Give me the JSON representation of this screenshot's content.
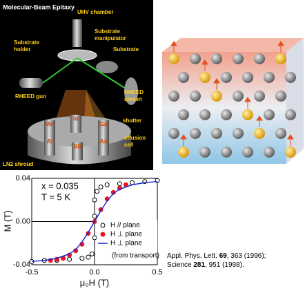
{
  "diagram": {
    "title": "Molecular-Beam Epitaxy",
    "labels": [
      {
        "lines": [
          "UHV chamber"
        ]
      },
      {
        "lines": [
          "Substrate",
          "manipulator"
        ]
      },
      {
        "lines": [
          "Substrate",
          "holder"
        ]
      },
      {
        "lines": [
          "Substrate"
        ]
      },
      {
        "lines": [
          "RHEED gun"
        ]
      },
      {
        "lines": [
          "RHEED",
          "screen"
        ]
      },
      {
        "lines": [
          "shutter"
        ]
      },
      {
        "lines": [
          "effusion",
          "cell"
        ]
      },
      {
        "lines": [
          "LN2 shroud"
        ]
      }
    ],
    "cells": [
      "Mn",
      "In",
      "Ga",
      "Al",
      "Sb",
      "As"
    ]
  },
  "reference": [
    {
      "journal": "Appl. Phys. Lett.",
      "volume": "69",
      "rest": ", 363 (1996);"
    },
    {
      "journal": "Science",
      "volume": "281",
      "rest": ", 951 (1998)."
    }
  ],
  "chart_data": {
    "type": "scatter",
    "x_label": "μ₀H (T)",
    "y_label": "M (T)",
    "annotations": [
      "x = 0.035",
      "T = 5 K"
    ],
    "legend_note": "(from transport)",
    "xlim": [
      -0.5,
      0.5
    ],
    "xticks": [
      -0.5,
      {
        "value": 0,
        "label": "0.0"
      },
      0.5
    ],
    "ylim": [
      -0.04,
      0.04
    ],
    "yticks": [
      -0.04,
      {
        "value": 0,
        "label": "0.00"
      },
      0.04
    ],
    "series": [
      {
        "name": "H // plane",
        "color": "#000000",
        "marker": "open-circle",
        "x": [
          -0.5,
          -0.4,
          -0.3,
          -0.2,
          -0.1,
          -0.05,
          -0.02,
          0,
          0,
          0,
          0.02,
          0.05,
          0.1,
          0.2,
          0.3,
          0.4,
          0.5
        ],
        "values": [
          -0.037,
          -0.036,
          -0.036,
          -0.035,
          -0.034,
          -0.033,
          -0.03,
          -0.015,
          0.005,
          0.02,
          0.028,
          0.032,
          0.034,
          0.035,
          0.036,
          0.037,
          0.038
        ]
      },
      {
        "name": "H ⊥ plane",
        "color": "#e8141c",
        "marker": "dot",
        "x": [
          -0.35,
          -0.3,
          -0.25,
          -0.2,
          -0.15,
          -0.1,
          -0.05,
          0,
          0.05,
          0.1,
          0.15,
          0.2,
          0.25
        ],
        "values": [
          -0.036,
          -0.035,
          -0.034,
          -0.031,
          -0.027,
          -0.021,
          -0.011,
          0,
          0.011,
          0.021,
          0.027,
          0.031,
          0.034
        ]
      },
      {
        "name": "H ⊥ plane",
        "color": "#1a2ad0",
        "marker": "line",
        "x": [
          -0.5,
          -0.4,
          -0.3,
          -0.2,
          -0.15,
          -0.1,
          -0.05,
          0,
          0.05,
          0.1,
          0.15,
          0.2,
          0.3,
          0.4,
          0.5
        ],
        "values": [
          -0.037,
          -0.036,
          -0.034,
          -0.03,
          -0.026,
          -0.019,
          -0.01,
          0,
          0.01,
          0.019,
          0.026,
          0.03,
          0.034,
          0.036,
          0.037
        ]
      }
    ]
  }
}
